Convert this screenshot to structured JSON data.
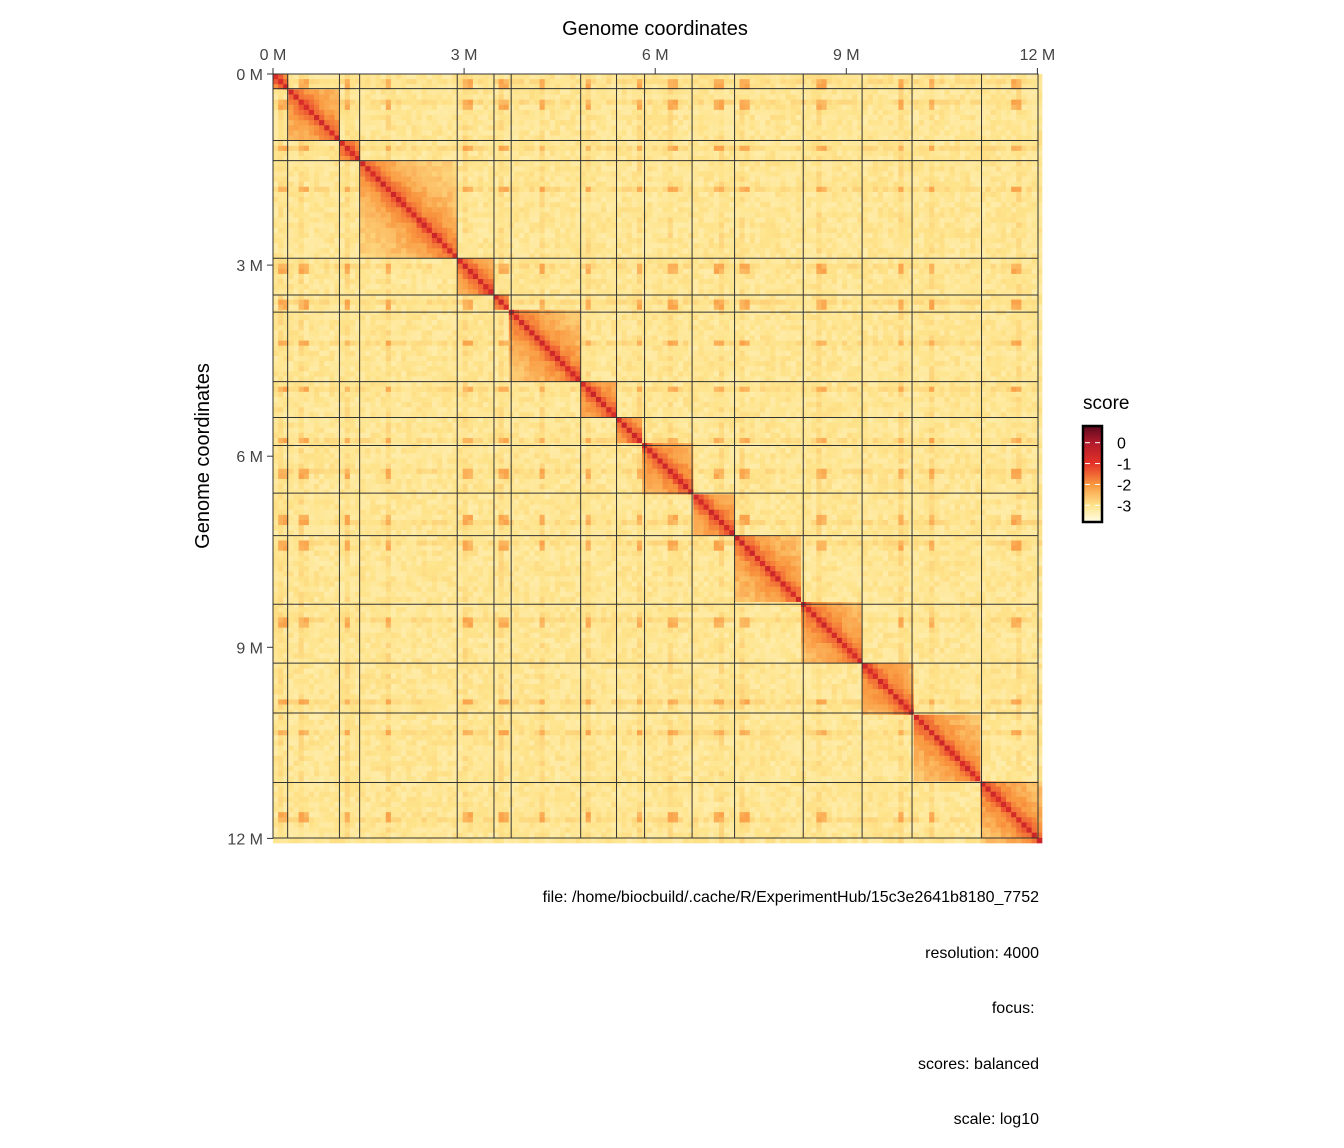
{
  "chart_data": {
    "type": "heatmap",
    "title_x": "Genome coordinates",
    "title_y": "Genome coordinates",
    "x_ticks": [
      {
        "value": 0,
        "label": "0 M"
      },
      {
        "value": 3,
        "label": "3 M"
      },
      {
        "value": 6,
        "label": "6 M"
      },
      {
        "value": 9,
        "label": "9 M"
      },
      {
        "value": 12,
        "label": "12 M"
      }
    ],
    "y_ticks": [
      {
        "value": 0,
        "label": "0 M"
      },
      {
        "value": 3,
        "label": "3 M"
      },
      {
        "value": 6,
        "label": "6 M"
      },
      {
        "value": 9,
        "label": "9 M"
      },
      {
        "value": 12,
        "label": "12 M"
      }
    ],
    "axis_range_mb": [
      0,
      12.071
    ],
    "chromosome_boundaries_mb": [
      0.23,
      1.043,
      1.36,
      2.892,
      3.469,
      3.739,
      4.83,
      5.393,
      5.833,
      6.579,
      7.246,
      8.324,
      9.248,
      10.032,
      11.123,
      12.071
    ],
    "centromeres_offset_mb": [
      0.151,
      0.238,
      0.114,
      0.449,
      0.151,
      0.148,
      0.496,
      0.105,
      0.355,
      0.436,
      0.44,
      0.15,
      0.268,
      0.628,
      0.326,
      0.556
    ],
    "score_model": {
      "diagonal_score": -0.6,
      "decay": 1.1,
      "inter_background": -3.1
    },
    "legend": {
      "title": "score",
      "ticks": [
        {
          "value": 0,
          "label": "0"
        },
        {
          "value": -1,
          "label": "-1"
        },
        {
          "value": -2,
          "label": "-2"
        },
        {
          "value": -3,
          "label": "-3"
        }
      ],
      "range": [
        -3.8,
        0.8
      ],
      "colors": [
        {
          "v": 0.8,
          "c": "#5c0a1e"
        },
        {
          "v": 0,
          "c": "#b11a2c"
        },
        {
          "v": -1,
          "c": "#e53228"
        },
        {
          "v": -2,
          "c": "#f9973f"
        },
        {
          "v": -3,
          "c": "#fee38a"
        },
        {
          "v": -3.8,
          "c": "#fffde6"
        }
      ]
    }
  },
  "caption": {
    "file": "file: /home/biocbuild/.cache/R/ExperimentHub/15c3e2641b8180_7752",
    "resolution": "resolution: 4000",
    "focus": "focus: ",
    "scores": "scores: balanced",
    "scale": "scale: log10"
  }
}
